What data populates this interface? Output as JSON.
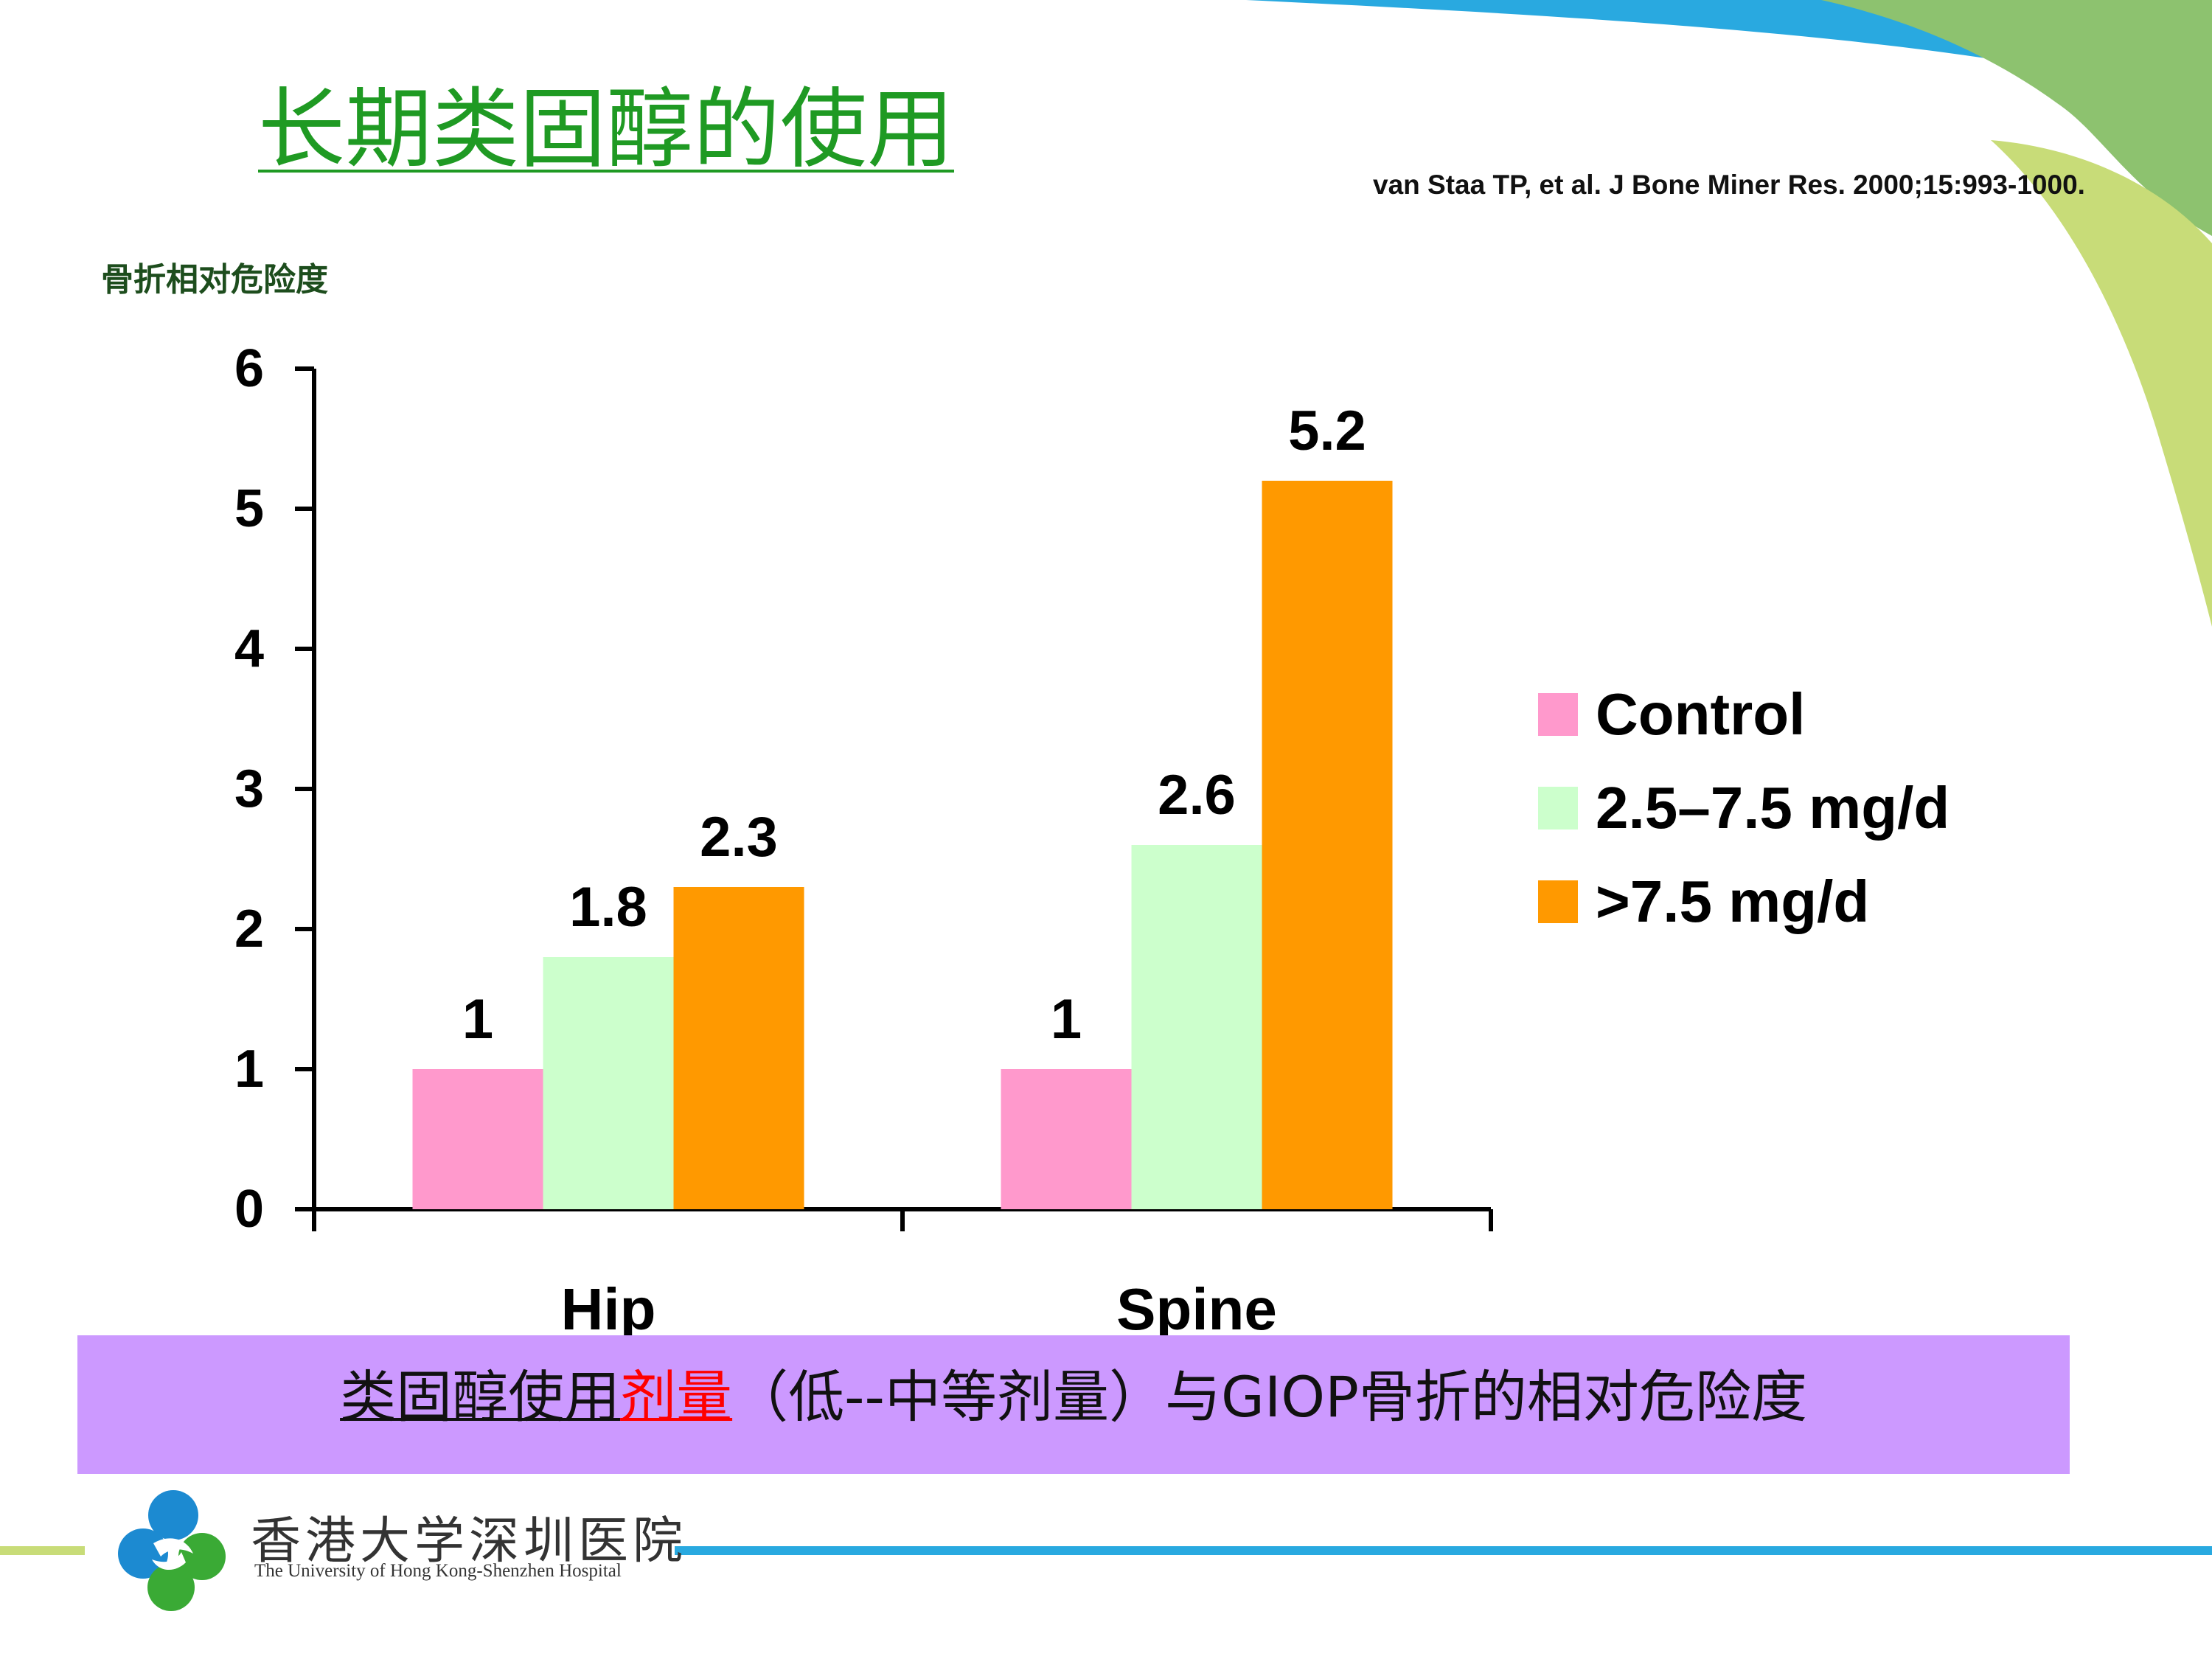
{
  "slide": {
    "title": "长期类固醇的使用",
    "citation": "van Staa TP, et al. J Bone Miner Res. 2000;15:993-1000.",
    "y_axis_label": "骨折相对危险度"
  },
  "banner": {
    "part1": "类固醇使用",
    "part2": "剂量",
    "part3": "（低--中等剂量）与GIOP骨折的相对危险度"
  },
  "footer": {
    "hospital_cn": "香港大学深圳医院",
    "hospital_en": "The University of Hong Kong-Shenzhen Hospital"
  },
  "colors": {
    "title_green": "#1f9a23",
    "banner_purple": "#cc99ff",
    "deco_blue": "#29a9e0",
    "deco_green": "#8dc26f",
    "deco_lime": "#c8dc78"
  },
  "chart_data": {
    "type": "bar",
    "categories": [
      "Hip",
      "Spine"
    ],
    "series": [
      {
        "name": "Control",
        "values": [
          1,
          1
        ],
        "labels": [
          "1",
          "1"
        ],
        "color": "#ff99cc"
      },
      {
        "name": "2.5–7.5 mg/d",
        "values": [
          1.8,
          2.6
        ],
        "labels": [
          "1.8",
          "2.6"
        ],
        "color": "#ccffcc"
      },
      {
        "name": ">7.5 mg/d",
        "values": [
          2.3,
          5.2
        ],
        "labels": [
          "2.3",
          "5.2"
        ],
        "color": "#ff9900"
      }
    ],
    "yticks": [
      0,
      1,
      2,
      3,
      4,
      5,
      6
    ],
    "ylim": [
      0,
      6
    ],
    "ylabel": "骨折相对危险度",
    "legend_position": "right",
    "grid": false
  }
}
